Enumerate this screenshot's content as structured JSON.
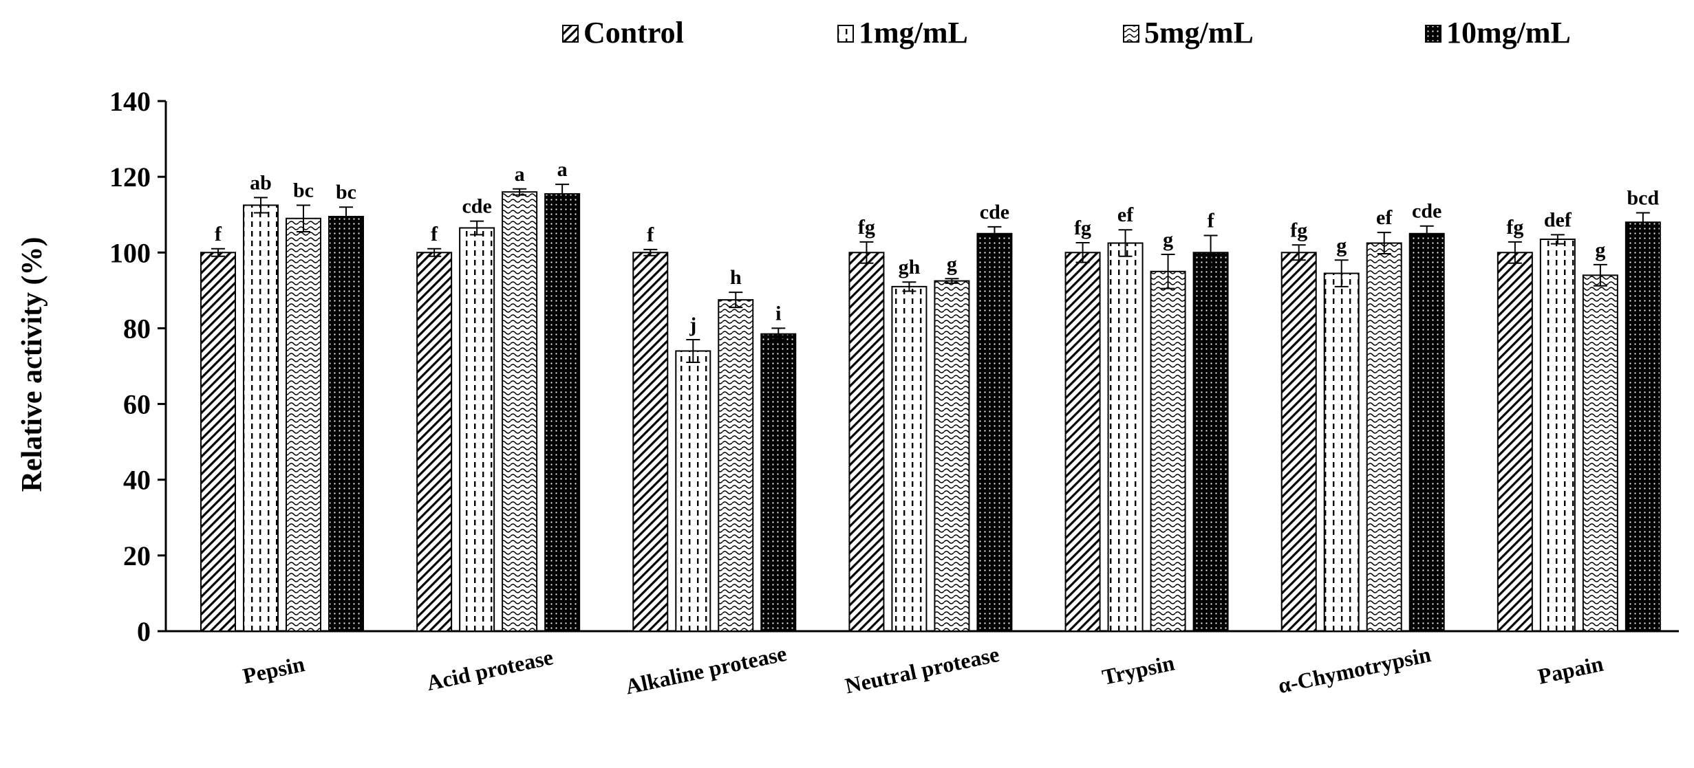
{
  "chart_data": {
    "type": "bar",
    "title": "",
    "xlabel": "",
    "ylabel": "Relative activity (%)",
    "ylim": [
      0,
      140
    ],
    "yticks": [
      0,
      20,
      40,
      60,
      80,
      100,
      120,
      140
    ],
    "grid": false,
    "legend_position": "top",
    "categories": [
      "Pepsin",
      "Acid protease",
      "Alkaline protease",
      "Neutral protease",
      "Trypsin",
      "α-Chymotrypsin",
      "Papain"
    ],
    "series": [
      {
        "name": "Control",
        "pattern": "diagonal",
        "values": [
          100,
          100,
          100,
          100,
          100,
          100,
          100
        ],
        "errors": [
          1.0,
          1.0,
          0.8,
          2.8,
          2.6,
          2.0,
          2.8
        ],
        "labels": [
          "f",
          "f",
          "f",
          "fg",
          "fg",
          "fg",
          "fg"
        ]
      },
      {
        "name": "1mg/mL",
        "pattern": "dashed-vertical",
        "values": [
          112.5,
          106.5,
          74,
          91,
          102.5,
          94.5,
          103.5
        ],
        "errors": [
          2.0,
          1.8,
          3.0,
          1.2,
          3.5,
          3.5,
          1.2
        ],
        "labels": [
          "ab",
          "cde",
          "j",
          "gh",
          "ef",
          "g",
          "def"
        ]
      },
      {
        "name": "5mg/mL",
        "pattern": "wave",
        "values": [
          109,
          116,
          87.5,
          92.5,
          95,
          102.5,
          94
        ],
        "errors": [
          3.5,
          0.8,
          2.0,
          0.6,
          4.5,
          2.8,
          2.8
        ],
        "labels": [
          "bc",
          "a",
          "h",
          "g",
          "g",
          "ef",
          "g"
        ]
      },
      {
        "name": "10mg/mL",
        "pattern": "dark-dotted",
        "values": [
          109.5,
          115.5,
          78.5,
          105,
          100,
          105,
          108
        ],
        "errors": [
          2.5,
          2.5,
          1.5,
          1.8,
          4.5,
          2.0,
          2.5
        ],
        "labels": [
          "bc",
          "a",
          "i",
          "cde",
          "f",
          "cde",
          "bcd"
        ]
      }
    ]
  }
}
